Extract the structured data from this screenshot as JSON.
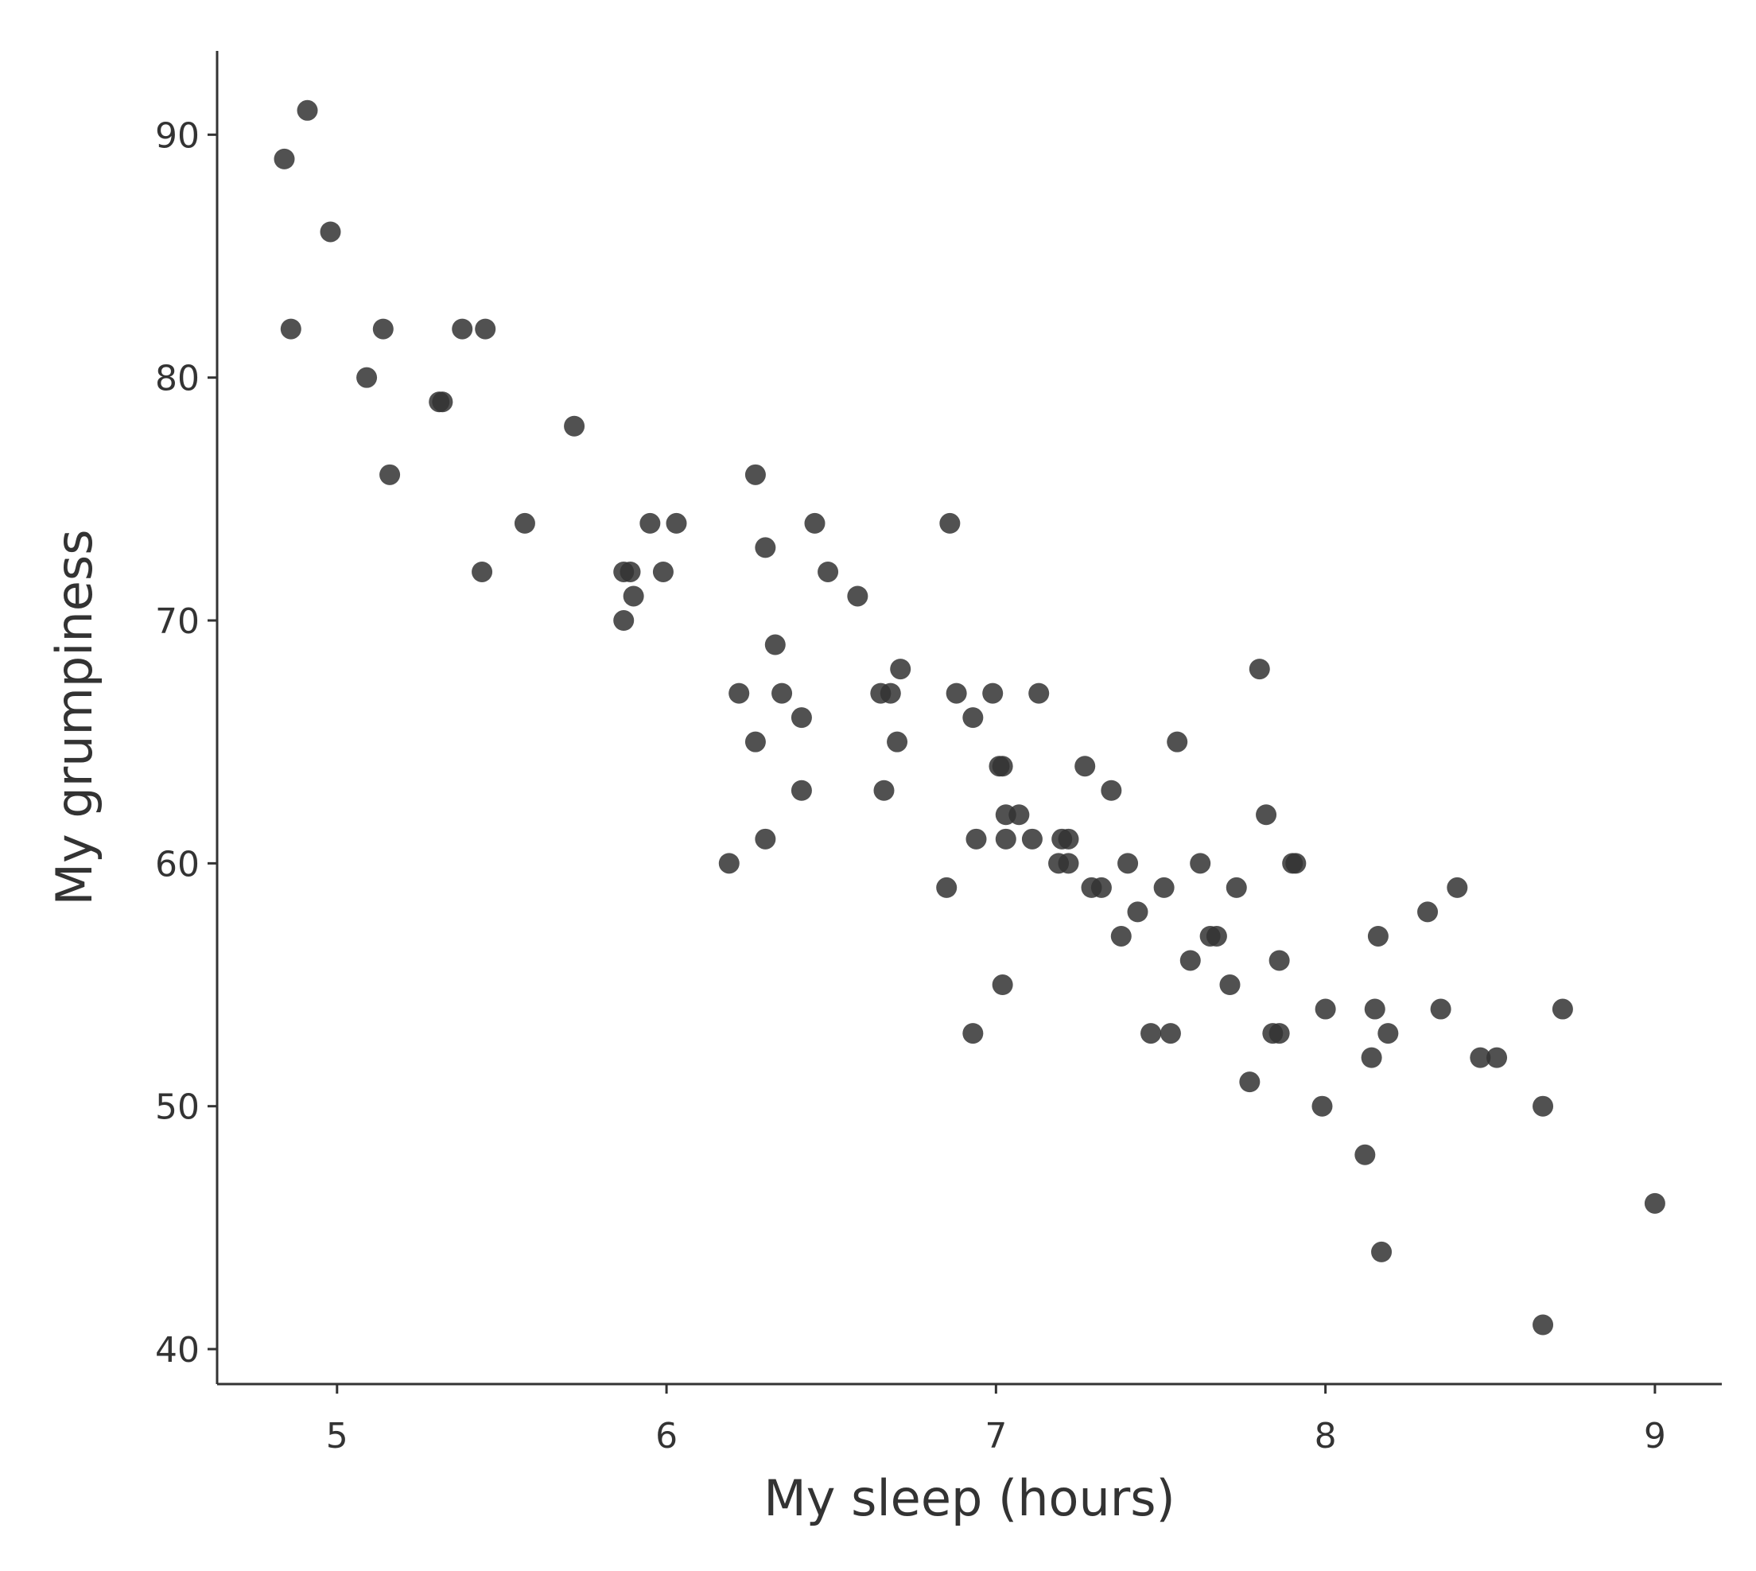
{
  "chart_data": {
    "type": "scatter",
    "xlabel": "My sleep (hours)",
    "ylabel": "My grumpiness",
    "x": [
      4.84,
      4.91,
      4.98,
      4.86,
      5.14,
      5.09,
      5.38,
      5.45,
      5.31,
      5.32,
      5.16,
      5.72,
      5.57,
      5.44,
      5.95,
      6.03,
      5.87,
      5.89,
      5.99,
      5.9,
      5.87,
      6.27,
      6.3,
      6.45,
      6.49,
      6.58,
      6.86,
      6.33,
      6.22,
      6.35,
      6.41,
      6.27,
      6.41,
      6.3,
      6.19,
      6.65,
      6.68,
      6.71,
      6.7,
      6.66,
      6.88,
      6.99,
      7.13,
      6.93,
      7.01,
      7.02,
      7.03,
      7.07,
      6.94,
      7.03,
      7.11,
      7.2,
      7.22,
      7.19,
      7.22,
      6.85,
      7.02,
      6.93,
      7.27,
      7.35,
      7.29,
      7.32,
      7.4,
      7.43,
      7.38,
      7.55,
      7.51,
      7.62,
      7.73,
      7.59,
      7.65,
      7.67,
      7.71,
      7.47,
      7.53,
      7.8,
      7.82,
      7.9,
      7.91,
      7.86,
      7.84,
      7.86,
      7.77,
      8.0,
      7.99,
      8.16,
      8.15,
      8.19,
      8.14,
      8.12,
      8.17,
      8.31,
      8.4,
      8.35,
      8.47,
      8.52,
      8.72,
      8.66,
      9.0,
      8.66
    ],
    "values": [
      89,
      91,
      86,
      82,
      82,
      80,
      82,
      82,
      79,
      79,
      76,
      78,
      74,
      72,
      74,
      74,
      72,
      72,
      72,
      71,
      70,
      76,
      73,
      74,
      72,
      71,
      74,
      69,
      67,
      67,
      66,
      65,
      63,
      61,
      60,
      67,
      67,
      68,
      65,
      63,
      67,
      67,
      67,
      66,
      64,
      64,
      62,
      62,
      61,
      61,
      61,
      61,
      61,
      60,
      60,
      59,
      55,
      53,
      64,
      63,
      59,
      59,
      60,
      58,
      57,
      65,
      59,
      60,
      59,
      56,
      57,
      57,
      55,
      53,
      53,
      68,
      62,
      60,
      60,
      56,
      53,
      53,
      51,
      54,
      50,
      57,
      54,
      53,
      52,
      48,
      44,
      58,
      59,
      54,
      52,
      52,
      54,
      50,
      46,
      41
    ],
    "color": "#333333",
    "xlim": [
      4.636,
      9.203
    ],
    "ylim": [
      38.56,
      93.45
    ],
    "xticks": [
      5,
      6,
      7,
      8,
      9
    ],
    "yticks": [
      40,
      50,
      60,
      70,
      80,
      90
    ]
  }
}
